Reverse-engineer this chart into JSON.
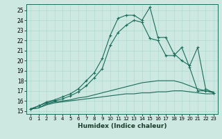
{
  "xlabel": "Humidex (Indice chaleur)",
  "bg_color": "#cce8e0",
  "line_color": "#1a6b5a",
  "xlim": [
    -0.5,
    23.5
  ],
  "ylim": [
    14.7,
    25.6
  ],
  "xticks": [
    0,
    1,
    2,
    3,
    4,
    5,
    6,
    7,
    8,
    9,
    10,
    11,
    12,
    13,
    14,
    15,
    16,
    17,
    18,
    19,
    20,
    21,
    22,
    23
  ],
  "yticks": [
    15,
    16,
    17,
    18,
    19,
    20,
    21,
    22,
    23,
    24,
    25
  ],
  "lines": [
    {
      "x": [
        0,
        1,
        2,
        3,
        4,
        5,
        6,
        7,
        8,
        9,
        10,
        11,
        12,
        13,
        14,
        15,
        16,
        17,
        18,
        19,
        20,
        21,
        22,
        23
      ],
      "y": [
        15.2,
        15.3,
        15.6,
        15.8,
        15.9,
        16.0,
        16.1,
        16.2,
        16.3,
        16.4,
        16.5,
        16.6,
        16.7,
        16.7,
        16.8,
        16.8,
        16.9,
        16.9,
        17.0,
        17.0,
        16.9,
        16.8,
        16.7,
        16.7
      ],
      "marker": false
    },
    {
      "x": [
        0,
        1,
        2,
        3,
        4,
        5,
        6,
        7,
        8,
        9,
        10,
        11,
        12,
        13,
        14,
        15,
        16,
        17,
        18,
        19,
        20,
        21,
        22,
        23
      ],
      "y": [
        15.2,
        15.3,
        15.7,
        15.9,
        16.0,
        16.1,
        16.3,
        16.4,
        16.6,
        16.8,
        17.0,
        17.2,
        17.4,
        17.6,
        17.8,
        17.9,
        18.0,
        18.0,
        18.0,
        17.8,
        17.5,
        17.2,
        17.0,
        16.9
      ],
      "marker": false
    },
    {
      "x": [
        0,
        1,
        2,
        3,
        4,
        5,
        6,
        7,
        8,
        9,
        10,
        11,
        12,
        13,
        14,
        15,
        16,
        17,
        18,
        19,
        20,
        21,
        22,
        23
      ],
      "y": [
        15.2,
        15.5,
        15.8,
        16.0,
        16.2,
        16.5,
        16.9,
        17.5,
        18.3,
        19.2,
        21.5,
        22.8,
        23.5,
        24.0,
        23.8,
        22.2,
        22.0,
        20.5,
        20.5,
        21.3,
        19.3,
        17.0,
        17.0,
        16.8
      ],
      "marker": true
    },
    {
      "x": [
        0,
        1,
        2,
        3,
        4,
        5,
        6,
        7,
        8,
        9,
        10,
        11,
        12,
        13,
        14,
        15,
        16,
        17,
        18,
        19,
        20,
        21,
        22,
        23
      ],
      "y": [
        15.2,
        15.5,
        15.9,
        16.1,
        16.4,
        16.7,
        17.2,
        18.0,
        18.8,
        20.2,
        22.5,
        24.2,
        24.5,
        24.5,
        24.0,
        25.3,
        22.3,
        22.3,
        20.7,
        20.0,
        19.5,
        21.3,
        17.2,
        16.8
      ],
      "marker": true
    }
  ]
}
